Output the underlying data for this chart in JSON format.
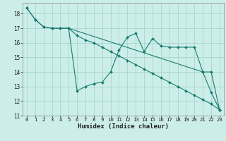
{
  "xlabel": "Humidex (Indice chaleur)",
  "background_color": "#cceee8",
  "grid_color": "#aad4ce",
  "line_color": "#1a7a72",
  "xlim": [
    -0.5,
    23.5
  ],
  "ylim": [
    11.0,
    18.75
  ],
  "yticks": [
    11,
    12,
    13,
    14,
    15,
    16,
    17,
    18
  ],
  "xticks": [
    0,
    1,
    2,
    3,
    4,
    5,
    6,
    7,
    8,
    9,
    10,
    11,
    12,
    13,
    14,
    15,
    16,
    17,
    18,
    19,
    20,
    21,
    22,
    23
  ],
  "series": [
    {
      "x": [
        0,
        1,
        2,
        3,
        4,
        5,
        21,
        22,
        23
      ],
      "y": [
        18.4,
        17.6,
        17.1,
        17.0,
        17.0,
        17.0,
        14.0,
        12.6,
        11.4
      ]
    },
    {
      "x": [
        0,
        1,
        2,
        3,
        4,
        5,
        6,
        7,
        8,
        9,
        10,
        11,
        12,
        13,
        14,
        15,
        16,
        17,
        18,
        19,
        20,
        21,
        22,
        23
      ],
      "y": [
        18.4,
        17.6,
        17.1,
        17.0,
        17.0,
        17.0,
        16.5,
        16.2,
        16.0,
        15.7,
        15.4,
        15.1,
        14.8,
        14.5,
        14.2,
        13.9,
        13.6,
        13.3,
        13.0,
        12.7,
        12.4,
        12.1,
        11.8,
        11.4
      ]
    },
    {
      "x": [
        5,
        6,
        7,
        8,
        9,
        10,
        11,
        12,
        13,
        14,
        15,
        16,
        17,
        18,
        19,
        20,
        21,
        22,
        23
      ],
      "y": [
        17.0,
        12.7,
        13.0,
        13.2,
        13.3,
        14.0,
        15.5,
        16.4,
        16.65,
        15.4,
        16.3,
        15.8,
        15.7,
        15.7,
        15.7,
        15.7,
        14.0,
        14.0,
        11.4
      ]
    }
  ]
}
